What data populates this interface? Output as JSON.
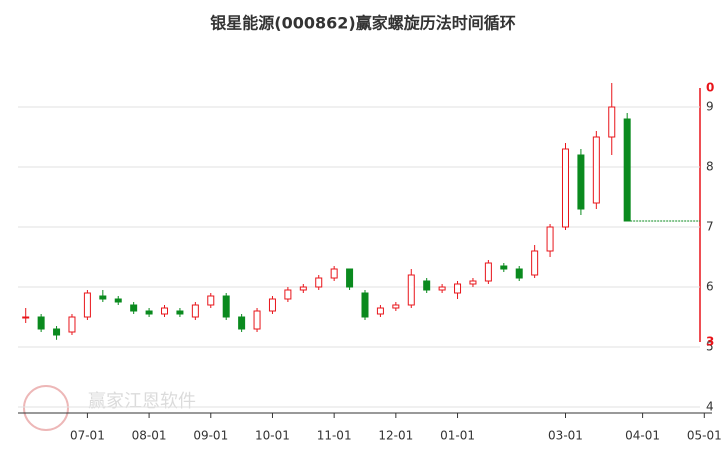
{
  "chart_data": {
    "type": "candlestick",
    "title": "银星能源(000862)赢家螺旋历法时间循环",
    "watermark": "赢家江恩软件",
    "categories": [
      null,
      null,
      null,
      null,
      "07-01",
      null,
      null,
      null,
      "08-01",
      null,
      null,
      null,
      "09-01",
      null,
      null,
      null,
      "10-01",
      null,
      null,
      null,
      "11-01",
      null,
      null,
      null,
      "12-01",
      null,
      null,
      null,
      "01-01",
      null,
      null,
      null,
      null,
      null,
      null,
      "03-01",
      null,
      null,
      null,
      null,
      "04-01",
      null,
      null,
      null,
      "05-01"
    ],
    "open": [
      5.5,
      5.5,
      5.3,
      5.25,
      5.5,
      5.85,
      5.8,
      5.7,
      5.6,
      5.55,
      5.6,
      5.5,
      5.7,
      5.85,
      5.5,
      5.3,
      5.6,
      5.8,
      5.95,
      6.0,
      6.15,
      6.3,
      5.9,
      5.55,
      5.65,
      5.7,
      6.1,
      5.95,
      5.9,
      6.05,
      6.1,
      6.35,
      6.3,
      6.2,
      6.6,
      7.0,
      8.2,
      7.4,
      8.5,
      8.8,
      null,
      null,
      null,
      null,
      null
    ],
    "high": [
      5.65,
      5.55,
      5.35,
      5.55,
      5.95,
      5.95,
      5.85,
      5.75,
      5.65,
      5.7,
      5.65,
      5.75,
      5.9,
      5.9,
      5.55,
      5.65,
      5.85,
      6.0,
      6.05,
      6.2,
      6.35,
      6.3,
      5.95,
      5.7,
      5.75,
      6.3,
      6.15,
      6.05,
      6.1,
      6.15,
      6.45,
      6.4,
      6.35,
      6.7,
      7.05,
      8.4,
      8.3,
      8.6,
      9.4,
      8.9,
      null,
      null,
      null,
      null,
      null
    ],
    "low": [
      5.4,
      5.25,
      5.12,
      5.2,
      5.45,
      5.75,
      5.7,
      5.55,
      5.5,
      5.5,
      5.5,
      5.45,
      5.65,
      5.45,
      5.25,
      5.25,
      5.55,
      5.75,
      5.9,
      5.95,
      6.1,
      5.95,
      5.45,
      5.5,
      5.6,
      5.65,
      5.9,
      5.9,
      5.8,
      6.0,
      6.05,
      6.25,
      6.1,
      6.15,
      6.5,
      6.95,
      7.2,
      7.3,
      8.2,
      7.1,
      null,
      null,
      null,
      null,
      null
    ],
    "close": [
      5.5,
      5.3,
      5.2,
      5.5,
      5.9,
      5.8,
      5.75,
      5.6,
      5.55,
      5.65,
      5.55,
      5.7,
      5.85,
      5.5,
      5.3,
      5.6,
      5.8,
      5.95,
      6.0,
      6.15,
      6.3,
      6.0,
      5.5,
      5.65,
      5.7,
      6.2,
      5.95,
      6.0,
      6.05,
      6.1,
      6.4,
      6.3,
      6.15,
      6.6,
      7.0,
      8.3,
      7.3,
      8.5,
      9.0,
      7.1,
      null,
      null,
      null,
      null,
      null
    ],
    "up_color": "#e8141a",
    "down_color": "#0a8a1e",
    "ylim": [
      4,
      9.6
    ],
    "yticks": [
      4,
      5,
      6,
      7,
      8,
      9
    ],
    "grid": true,
    "cycle_labels": [
      "0",
      "3"
    ]
  }
}
